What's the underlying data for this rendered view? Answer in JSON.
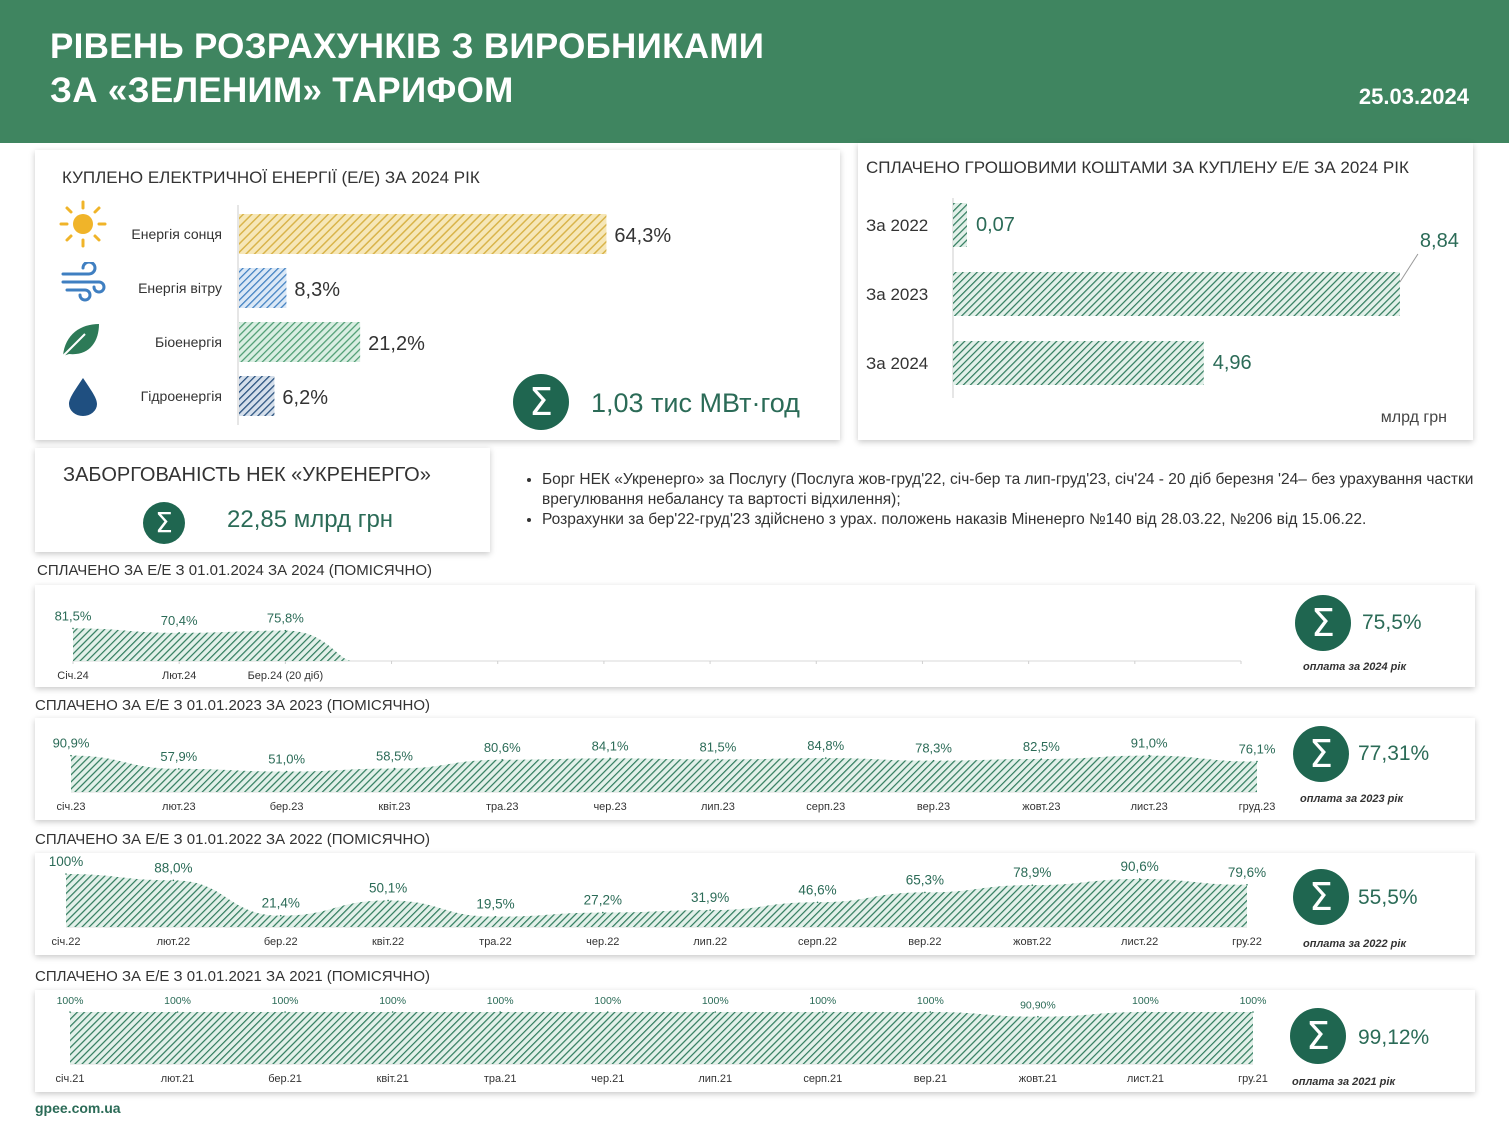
{
  "header": {
    "title_line1": "РІВЕНЬ РОЗРАХУНКІВ З ВИРОБНИКАМИ",
    "title_line2": "ЗА «ЗЕЛЕНИМ» ТАРИФОМ",
    "date": "25.03.2024"
  },
  "purchased": {
    "title": "КУПЛЕНО ЕЛЕКТРИЧНОЇ ЕНЕРГІЇ (Е/Е) ЗА 2024 РІК",
    "total": "1,03 тис МВт·год",
    "sum_symbol": "Σ"
  },
  "paid": {
    "title": "СПЛАЧЕНО ГРОШОВИМИ КОШТАМИ ЗА КУПЛЕНУ Е/Е ЗА 2024 РІК",
    "unit": "млрд грн"
  },
  "debt": {
    "title": "ЗАБОРГОВАНІСТЬ НЕК «УКРЕНЕРГО»",
    "value": "22,85 млрд грн",
    "notes": [
      "Борг НЕК «Укренерго» за Послугу (Послуга жов-груд'22, січ-бер та лип-груд'23, січ'24 - 20 діб березня '24– без урахування частки врегулювання небалансу та вартості відхилення);",
      "Розрахунки за бер'22-груд'23 здійснено з урах. положень наказів Міненерго №140 від 28.03.22, №206 від 15.06.22."
    ]
  },
  "monthly": [
    {
      "title": "СПЛАЧЕНО ЗА Е/Е З 01.01.2024 ЗА 2024  (ПОМІСЯЧНО)",
      "total": "75,5%",
      "caption": "оплата за 2024 рік"
    },
    {
      "title": "СПЛАЧЕНО ЗА Е/Е З 01.01.2023 ЗА 2023  (ПОМІСЯЧНО)",
      "total": "77,31%",
      "caption": "оплата за 2023 рік"
    },
    {
      "title": "СПЛАЧЕНО ЗА Е/Е З 01.01.2022 ЗА 2022 (ПОМІСЯЧНО)",
      "total": "55,5%",
      "caption": "оплата за 2022 рік"
    },
    {
      "title": "СПЛАЧЕНО ЗА Е/Е З 01.01.2021 ЗА 2021 (ПОМІСЯЧНО)",
      "total": "99,12%",
      "caption": "оплата за 2021 рік"
    }
  ],
  "footer": "gpee.com.ua",
  "colors": {
    "header": "#3f8560",
    "solar": "#e8c96a",
    "wind": "#4a86c5",
    "bio": "#5aa77e",
    "hydro": "#2f5d8c",
    "accent": "#1f6650"
  },
  "chart_data": [
    {
      "type": "bar",
      "orientation": "horizontal",
      "categories": [
        "Енергія сонця",
        "Енергія вітру",
        "Біоенергія",
        "Гідроенергія"
      ],
      "values": [
        64.3,
        8.3,
        21.2,
        6.2
      ],
      "labels": [
        "64,3%",
        "8,3%",
        "21,2%",
        "6,2%"
      ],
      "icons": [
        "sun-icon",
        "wind-icon",
        "leaf-icon",
        "water-drop-icon"
      ],
      "xlim": [
        0,
        70
      ]
    },
    {
      "type": "bar",
      "orientation": "horizontal",
      "categories": [
        "За 2022",
        "За 2023",
        "За 2024"
      ],
      "values": [
        0.07,
        8.84,
        4.96
      ],
      "labels": [
        "0,07",
        "8,84",
        "4,96"
      ],
      "xlim": [
        0,
        9
      ]
    },
    {
      "type": "area",
      "categories": [
        "Січ.24",
        "Лют.24",
        "Бер.24 (20 діб)"
      ],
      "slots": 12,
      "values": [
        81.5,
        70.4,
        75.8
      ],
      "labels": [
        "81,5%",
        "70,4%",
        "75,8%"
      ]
    },
    {
      "type": "area",
      "categories": [
        "січ.23",
        "лют.23",
        "бер.23",
        "квіт.23",
        "тра.23",
        "чер.23",
        "лип.23",
        "серп.23",
        "вер.23",
        "жовт.23",
        "лист.23",
        "груд.23"
      ],
      "values": [
        90.9,
        57.9,
        51.0,
        58.5,
        80.6,
        84.1,
        81.5,
        84.8,
        78.3,
        82.5,
        91.0,
        76.1
      ],
      "labels": [
        "90,9%",
        "57,9%",
        "51,0%",
        "58,5%",
        "80,6%",
        "84,1%",
        "81,5%",
        "84,8%",
        "78,3%",
        "82,5%",
        "91,0%",
        "76,1%"
      ]
    },
    {
      "type": "area",
      "categories": [
        "січ.22",
        "лют.22",
        "бер.22",
        "квіт.22",
        "тра.22",
        "чер.22",
        "лип.22",
        "серп.22",
        "вер.22",
        "жовт.22",
        "лист.22",
        "гру.22"
      ],
      "values": [
        100,
        88.0,
        21.4,
        50.1,
        19.5,
        27.2,
        31.9,
        46.6,
        65.3,
        78.9,
        90.6,
        79.6
      ],
      "labels": [
        "100%",
        "88,0%",
        "21,4%",
        "50,1%",
        "19,5%",
        "27,2%",
        "31,9%",
        "46,6%",
        "65,3%",
        "78,9%",
        "90,6%",
        "79,6%"
      ]
    },
    {
      "type": "area",
      "categories": [
        "січ.21",
        "лют.21",
        "бер.21",
        "квіт.21",
        "тра.21",
        "чер.21",
        "лип.21",
        "серп.21",
        "вер.21",
        "жовт.21",
        "лист.21",
        "гру.21"
      ],
      "values": [
        100,
        100,
        100,
        100,
        100,
        100,
        100,
        100,
        100,
        90.9,
        100,
        100
      ],
      "labels": [
        "100%",
        "100%",
        "100%",
        "100%",
        "100%",
        "100%",
        "100%",
        "100%",
        "100%",
        "90,90%",
        "100%",
        "100%"
      ]
    }
  ]
}
